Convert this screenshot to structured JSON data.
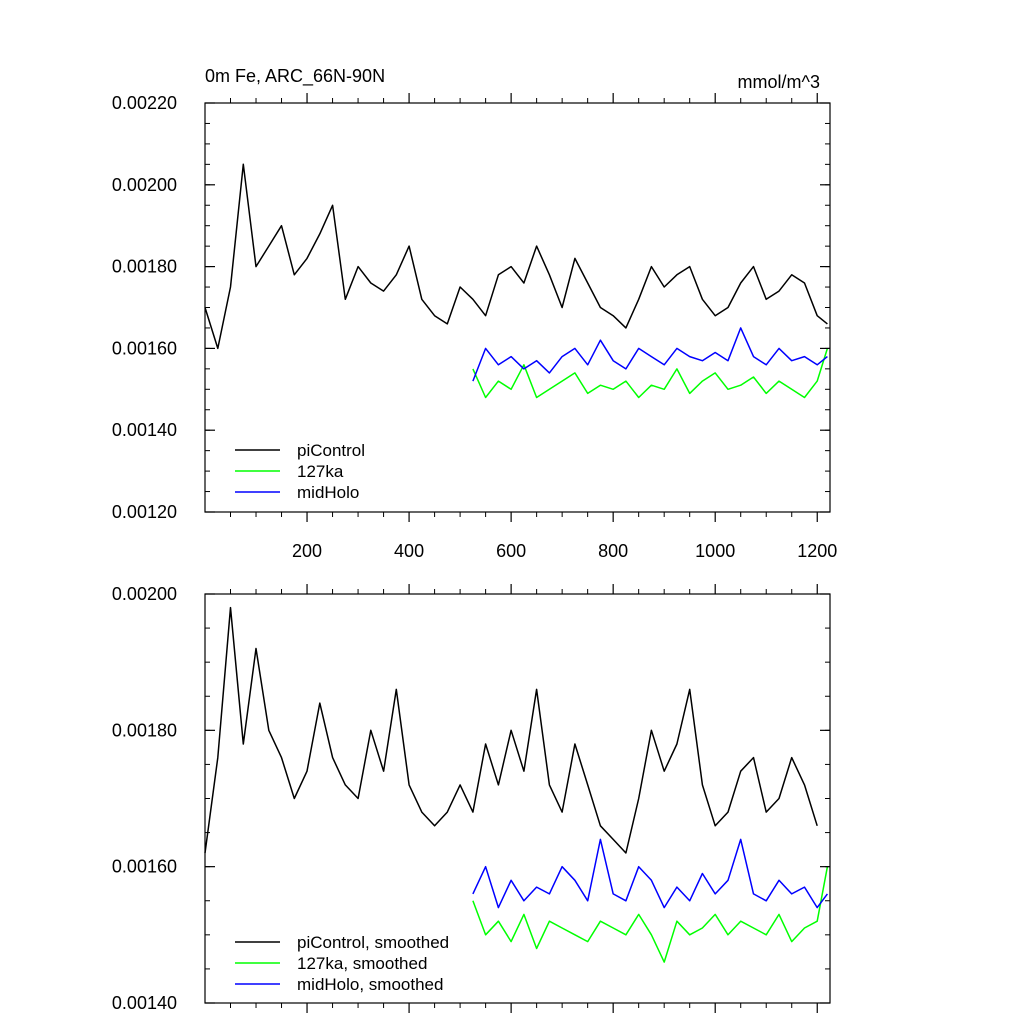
{
  "chart_data": [
    {
      "type": "line",
      "title": "0m Fe, ARC_66N-90N",
      "units": "mmol/m^3",
      "xlabel": "",
      "ylabel": "",
      "xlim": [
        0,
        1225
      ],
      "ylim": [
        0.0012,
        0.0022
      ],
      "x_ticks": [
        200,
        400,
        600,
        800,
        1000,
        1200
      ],
      "x_tick_labels": [
        "200",
        "400",
        "600",
        "800",
        "1000",
        "1200"
      ],
      "y_ticks": [
        0.0012,
        0.0014,
        0.0016,
        0.0018,
        0.002,
        0.0022
      ],
      "y_tick_labels": [
        "0.00120",
        "0.00140",
        "0.00160",
        "0.00180",
        "0.00200",
        "0.00220"
      ],
      "legend_position": "bottom-left",
      "series": [
        {
          "name": "piControl",
          "color": "#000000",
          "x": [
            0,
            25,
            50,
            75,
            100,
            125,
            150,
            175,
            200,
            225,
            250,
            275,
            300,
            325,
            350,
            375,
            400,
            425,
            450,
            475,
            500,
            525,
            550,
            575,
            600,
            625,
            650,
            675,
            700,
            725,
            750,
            775,
            800,
            825,
            850,
            875,
            900,
            925,
            950,
            975,
            1000,
            1025,
            1050,
            1075,
            1100,
            1125,
            1150,
            1175,
            1200,
            1220
          ],
          "values": [
            0.0017,
            0.0016,
            0.00175,
            0.00205,
            0.0018,
            0.00185,
            0.0019,
            0.00178,
            0.00182,
            0.00188,
            0.00195,
            0.00172,
            0.0018,
            0.00176,
            0.00174,
            0.00178,
            0.00185,
            0.00172,
            0.00168,
            0.00166,
            0.00175,
            0.00172,
            0.00168,
            0.00178,
            0.0018,
            0.00176,
            0.00185,
            0.00178,
            0.0017,
            0.00182,
            0.00176,
            0.0017,
            0.00168,
            0.00165,
            0.00172,
            0.0018,
            0.00175,
            0.00178,
            0.0018,
            0.00172,
            0.00168,
            0.0017,
            0.00176,
            0.0018,
            0.00172,
            0.00174,
            0.00178,
            0.00176,
            0.00168,
            0.00166
          ]
        },
        {
          "name": "127ka",
          "color": "#00ff00",
          "x": [
            525,
            550,
            575,
            600,
            625,
            650,
            675,
            700,
            725,
            750,
            775,
            800,
            825,
            850,
            875,
            900,
            925,
            950,
            975,
            1000,
            1025,
            1050,
            1075,
            1100,
            1125,
            1150,
            1175,
            1200,
            1220
          ],
          "values": [
            0.00155,
            0.00148,
            0.00152,
            0.0015,
            0.00156,
            0.00148,
            0.0015,
            0.00152,
            0.00154,
            0.00149,
            0.00151,
            0.0015,
            0.00152,
            0.00148,
            0.00151,
            0.0015,
            0.00155,
            0.00149,
            0.00152,
            0.00154,
            0.0015,
            0.00151,
            0.00153,
            0.00149,
            0.00152,
            0.0015,
            0.00148,
            0.00152,
            0.0016
          ]
        },
        {
          "name": "midHolo",
          "color": "#0000ff",
          "x": [
            525,
            550,
            575,
            600,
            625,
            650,
            675,
            700,
            725,
            750,
            775,
            800,
            825,
            850,
            875,
            900,
            925,
            950,
            975,
            1000,
            1025,
            1050,
            1075,
            1100,
            1125,
            1150,
            1175,
            1200,
            1220
          ],
          "values": [
            0.00152,
            0.0016,
            0.00156,
            0.00158,
            0.00155,
            0.00157,
            0.00154,
            0.00158,
            0.0016,
            0.00156,
            0.00162,
            0.00157,
            0.00155,
            0.0016,
            0.00158,
            0.00156,
            0.0016,
            0.00158,
            0.00157,
            0.00159,
            0.00157,
            0.00165,
            0.00158,
            0.00156,
            0.0016,
            0.00157,
            0.00158,
            0.00156,
            0.00158
          ]
        }
      ],
      "legend": [
        "piControl",
        "127ka",
        "midHolo"
      ]
    },
    {
      "type": "line",
      "title": "",
      "xlabel": "",
      "ylabel": "",
      "xlim": [
        0,
        1225
      ],
      "ylim": [
        0.0014,
        0.002
      ],
      "x_ticks": [
        200,
        400,
        600,
        800,
        1000,
        1200
      ],
      "x_tick_labels": [],
      "y_ticks": [
        0.0014,
        0.0016,
        0.0018,
        0.002
      ],
      "y_tick_labels": [
        "0.00140",
        "0.00160",
        "0.00180",
        "0.00200"
      ],
      "legend_position": "bottom-left",
      "series": [
        {
          "name": "piControl, smoothed",
          "color": "#000000",
          "x": [
            0,
            25,
            50,
            75,
            100,
            125,
            150,
            175,
            200,
            225,
            250,
            275,
            300,
            325,
            350,
            375,
            400,
            425,
            450,
            475,
            500,
            525,
            550,
            575,
            600,
            625,
            650,
            675,
            700,
            725,
            750,
            775,
            800,
            825,
            850,
            875,
            900,
            925,
            950,
            975,
            1000,
            1025,
            1050,
            1075,
            1100,
            1125,
            1150,
            1175,
            1200
          ],
          "values": [
            0.00162,
            0.00176,
            0.00198,
            0.00178,
            0.00192,
            0.0018,
            0.00176,
            0.0017,
            0.00174,
            0.00184,
            0.00176,
            0.00172,
            0.0017,
            0.0018,
            0.00174,
            0.00186,
            0.00172,
            0.00168,
            0.00166,
            0.00168,
            0.00172,
            0.00168,
            0.00178,
            0.00172,
            0.0018,
            0.00174,
            0.00186,
            0.00172,
            0.00168,
            0.00178,
            0.00172,
            0.00166,
            0.00164,
            0.00162,
            0.0017,
            0.0018,
            0.00174,
            0.00178,
            0.00186,
            0.00172,
            0.00166,
            0.00168,
            0.00174,
            0.00176,
            0.00168,
            0.0017,
            0.00176,
            0.00172,
            0.00166
          ]
        },
        {
          "name": "127ka, smoothed",
          "color": "#00ff00",
          "x": [
            525,
            550,
            575,
            600,
            625,
            650,
            675,
            700,
            725,
            750,
            775,
            800,
            825,
            850,
            875,
            900,
            925,
            950,
            975,
            1000,
            1025,
            1050,
            1075,
            1100,
            1125,
            1150,
            1175,
            1200,
            1220
          ],
          "values": [
            0.00155,
            0.0015,
            0.00152,
            0.00149,
            0.00153,
            0.00148,
            0.00152,
            0.00151,
            0.0015,
            0.00149,
            0.00152,
            0.00151,
            0.0015,
            0.00153,
            0.0015,
            0.00146,
            0.00152,
            0.0015,
            0.00151,
            0.00153,
            0.0015,
            0.00152,
            0.00151,
            0.0015,
            0.00153,
            0.00149,
            0.00151,
            0.00152,
            0.0016
          ]
        },
        {
          "name": "midHolo, smoothed",
          "color": "#0000ff",
          "x": [
            525,
            550,
            575,
            600,
            625,
            650,
            675,
            700,
            725,
            750,
            775,
            800,
            825,
            850,
            875,
            900,
            925,
            950,
            975,
            1000,
            1025,
            1050,
            1075,
            1100,
            1125,
            1150,
            1175,
            1200,
            1220
          ],
          "values": [
            0.00156,
            0.0016,
            0.00154,
            0.00158,
            0.00155,
            0.00157,
            0.00156,
            0.0016,
            0.00158,
            0.00155,
            0.00164,
            0.00156,
            0.00155,
            0.0016,
            0.00158,
            0.00154,
            0.00157,
            0.00155,
            0.00159,
            0.00156,
            0.00158,
            0.00164,
            0.00156,
            0.00155,
            0.00158,
            0.00156,
            0.00157,
            0.00154,
            0.00156
          ]
        }
      ],
      "legend": [
        "piControl, smoothed",
        "127ka, smoothed",
        "midHolo, smoothed"
      ]
    }
  ]
}
